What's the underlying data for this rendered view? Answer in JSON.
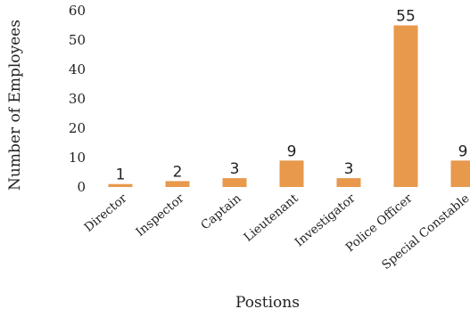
{
  "chart_data": {
    "type": "bar",
    "title": "",
    "xlabel": "Postions",
    "ylabel": "Number of Employees",
    "categories": [
      "Director",
      "Inspector",
      "Captain",
      "Lieutenant",
      "Investigator",
      "Police Officer",
      "Special Constable"
    ],
    "values": [
      1,
      2,
      3,
      9,
      3,
      55,
      9
    ],
    "data_labels": [
      "1",
      "2",
      "3",
      "9",
      "3",
      "55",
      "9"
    ],
    "yticks": [
      "0",
      "10",
      "20",
      "30",
      "40",
      "50",
      "60"
    ],
    "ylim": [
      0,
      60
    ],
    "grid": false,
    "legend": "none",
    "bar_color": "#e8994c"
  }
}
